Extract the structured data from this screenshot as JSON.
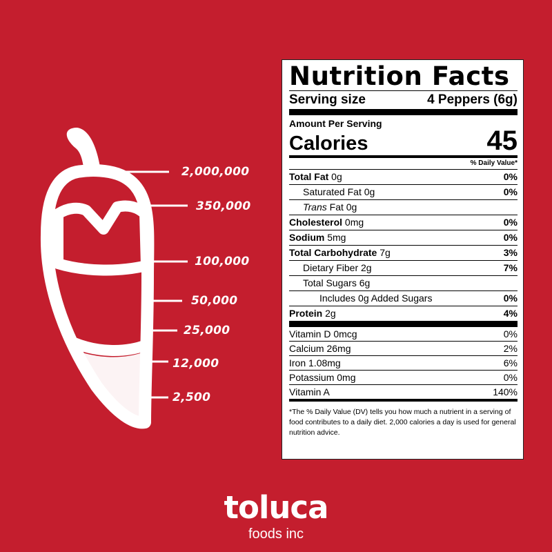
{
  "heat_scale": [
    "2,000,000",
    "350,000",
    "100,000",
    "50,000",
    "25,000",
    "12,000",
    "2,500"
  ],
  "nutrition": {
    "title": "Nutrition Facts",
    "serving_label": "Serving size",
    "serving_value": "4 Peppers (6g)",
    "amount_per_serving": "Amount Per Serving",
    "calories_label": "Calories",
    "calories_value": "45",
    "dv_header": "% Daily Value*",
    "rows": [
      {
        "bold": "Total Fat",
        "rest": " 0g",
        "dv": "0%"
      },
      {
        "bold": "",
        "rest": "Saturated Fat 0g",
        "dv": "0%",
        "indent": 1
      },
      {
        "italic": "Trans",
        "rest": " Fat 0g",
        "dv": "",
        "indent": 1
      },
      {
        "bold": "Cholesterol",
        "rest": " 0mg",
        "dv": "0%"
      },
      {
        "bold": "Sodium",
        "rest": " 5mg",
        "dv": "0%"
      },
      {
        "bold": "Total Carbohydrate",
        "rest": " 7g",
        "dv": "3%"
      },
      {
        "bold": "",
        "rest": "Dietary Fiber 2g",
        "dv": "7%",
        "indent": 1
      },
      {
        "bold": "",
        "rest": "Total Sugars 6g",
        "dv": "",
        "indent": 1
      },
      {
        "bold": "",
        "rest": "Includes 0g Added Sugars",
        "dv": "0%",
        "indent": 2
      },
      {
        "bold": "Protein",
        "rest": " 2g",
        "dv": "4%"
      }
    ],
    "vitamins": [
      {
        "name": "Vitamin D 0mcg",
        "dv": "0%"
      },
      {
        "name": "Calcium 26mg",
        "dv": "2%"
      },
      {
        "name": "Iron 1.08mg",
        "dv": "6%"
      },
      {
        "name": "Potassium 0mg",
        "dv": "0%"
      },
      {
        "name": "Vitamin A",
        "dv": "140%"
      }
    ],
    "footnote": "*The % Daily Value (DV) tells you how much a nutrient in a serving of food contributes to a daily diet. 2,000 calories a day is used for general nutrition advice."
  },
  "brand": {
    "name": "toluca",
    "sub": "foods inc"
  },
  "colors": {
    "background": "#c41e2e",
    "foreground": "#ffffff"
  }
}
